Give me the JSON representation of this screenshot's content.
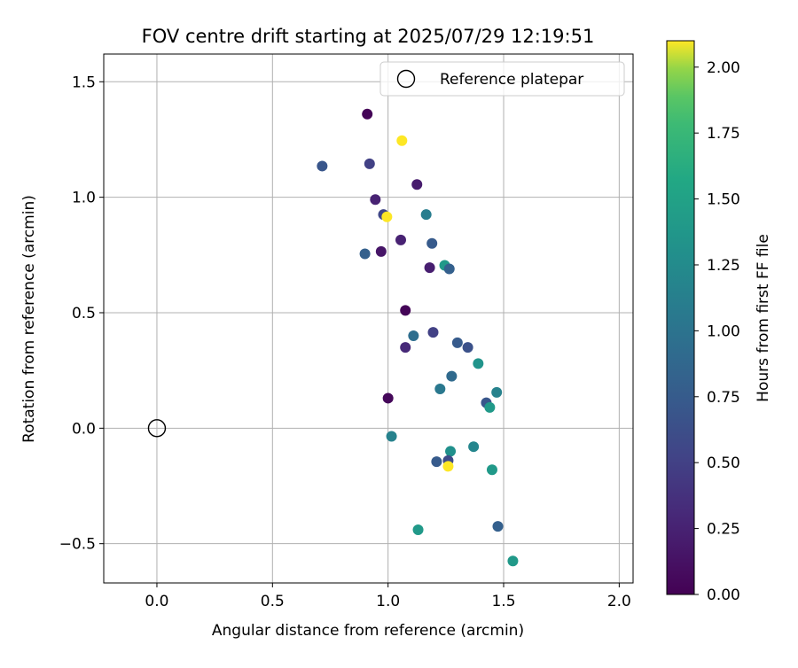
{
  "chart_data": {
    "type": "scatter",
    "title": "FOV centre drift starting at 2025/07/29 12:19:51",
    "xlabel": "Angular distance from reference (arcmin)",
    "ylabel": "Rotation from reference (arcmin)",
    "xlim": [
      -0.23,
      2.06
    ],
    "ylim": [
      -0.67,
      1.62
    ],
    "xticks": [
      0.0,
      0.5,
      1.0,
      1.5,
      2.0
    ],
    "xtick_labels": [
      "0.0",
      "0.5",
      "1.0",
      "1.5",
      "2.0"
    ],
    "yticks": [
      -0.5,
      0.0,
      0.5,
      1.0,
      1.5
    ],
    "ytick_labels": [
      "−0.5",
      "0.0",
      "0.5",
      "1.0",
      "1.5"
    ],
    "grid": true,
    "legend": {
      "position": "top-right",
      "entries": [
        "Reference platepar"
      ]
    },
    "reference_point": {
      "x": 0.0,
      "y": 0.0
    },
    "colorbar": {
      "label": "Hours from first FF file",
      "colormap": "viridis",
      "range": [
        0.0,
        2.1
      ],
      "ticks": [
        0.0,
        0.25,
        0.5,
        0.75,
        1.0,
        1.25,
        1.5,
        1.75,
        2.0
      ],
      "tick_labels": [
        "0.00",
        "0.25",
        "0.50",
        "0.75",
        "1.00",
        "1.25",
        "1.50",
        "1.75",
        "2.00"
      ]
    },
    "points": [
      {
        "x": 0.91,
        "y": 1.36,
        "t": 0.02
      },
      {
        "x": 1.06,
        "y": 1.245,
        "t": 2.1
      },
      {
        "x": 0.715,
        "y": 1.135,
        "t": 0.7
      },
      {
        "x": 0.92,
        "y": 1.145,
        "t": 0.5
      },
      {
        "x": 1.125,
        "y": 1.055,
        "t": 0.2
      },
      {
        "x": 0.945,
        "y": 0.99,
        "t": 0.25
      },
      {
        "x": 0.98,
        "y": 0.925,
        "t": 0.55
      },
      {
        "x": 0.995,
        "y": 0.915,
        "t": 2.1
      },
      {
        "x": 1.165,
        "y": 0.925,
        "t": 1.1
      },
      {
        "x": 1.055,
        "y": 0.815,
        "t": 0.25
      },
      {
        "x": 1.19,
        "y": 0.8,
        "t": 0.75
      },
      {
        "x": 0.9,
        "y": 0.755,
        "t": 0.8
      },
      {
        "x": 0.97,
        "y": 0.765,
        "t": 0.15
      },
      {
        "x": 1.18,
        "y": 0.695,
        "t": 0.22
      },
      {
        "x": 1.245,
        "y": 0.705,
        "t": 1.4
      },
      {
        "x": 1.265,
        "y": 0.69,
        "t": 0.8
      },
      {
        "x": 1.075,
        "y": 0.51,
        "t": 0.02
      },
      {
        "x": 1.11,
        "y": 0.4,
        "t": 0.95
      },
      {
        "x": 1.195,
        "y": 0.415,
        "t": 0.5
      },
      {
        "x": 1.3,
        "y": 0.37,
        "t": 0.75
      },
      {
        "x": 1.345,
        "y": 0.35,
        "t": 0.65
      },
      {
        "x": 1.075,
        "y": 0.35,
        "t": 0.3
      },
      {
        "x": 1.39,
        "y": 0.28,
        "t": 1.35
      },
      {
        "x": 1.275,
        "y": 0.225,
        "t": 0.9
      },
      {
        "x": 1.225,
        "y": 0.17,
        "t": 1.05
      },
      {
        "x": 1.47,
        "y": 0.155,
        "t": 1.15
      },
      {
        "x": 1.425,
        "y": 0.11,
        "t": 0.7
      },
      {
        "x": 1.44,
        "y": 0.09,
        "t": 1.4
      },
      {
        "x": 1.0,
        "y": 0.13,
        "t": 0.05
      },
      {
        "x": 1.015,
        "y": -0.035,
        "t": 1.15
      },
      {
        "x": 1.27,
        "y": -0.1,
        "t": 1.3
      },
      {
        "x": 1.37,
        "y": -0.08,
        "t": 1.2
      },
      {
        "x": 1.21,
        "y": -0.145,
        "t": 0.75
      },
      {
        "x": 1.26,
        "y": -0.14,
        "t": 0.6
      },
      {
        "x": 1.26,
        "y": -0.165,
        "t": 2.1
      },
      {
        "x": 1.45,
        "y": -0.18,
        "t": 1.4
      },
      {
        "x": 1.13,
        "y": -0.44,
        "t": 1.4
      },
      {
        "x": 1.475,
        "y": -0.425,
        "t": 0.8
      },
      {
        "x": 1.54,
        "y": -0.575,
        "t": 1.4
      }
    ]
  }
}
